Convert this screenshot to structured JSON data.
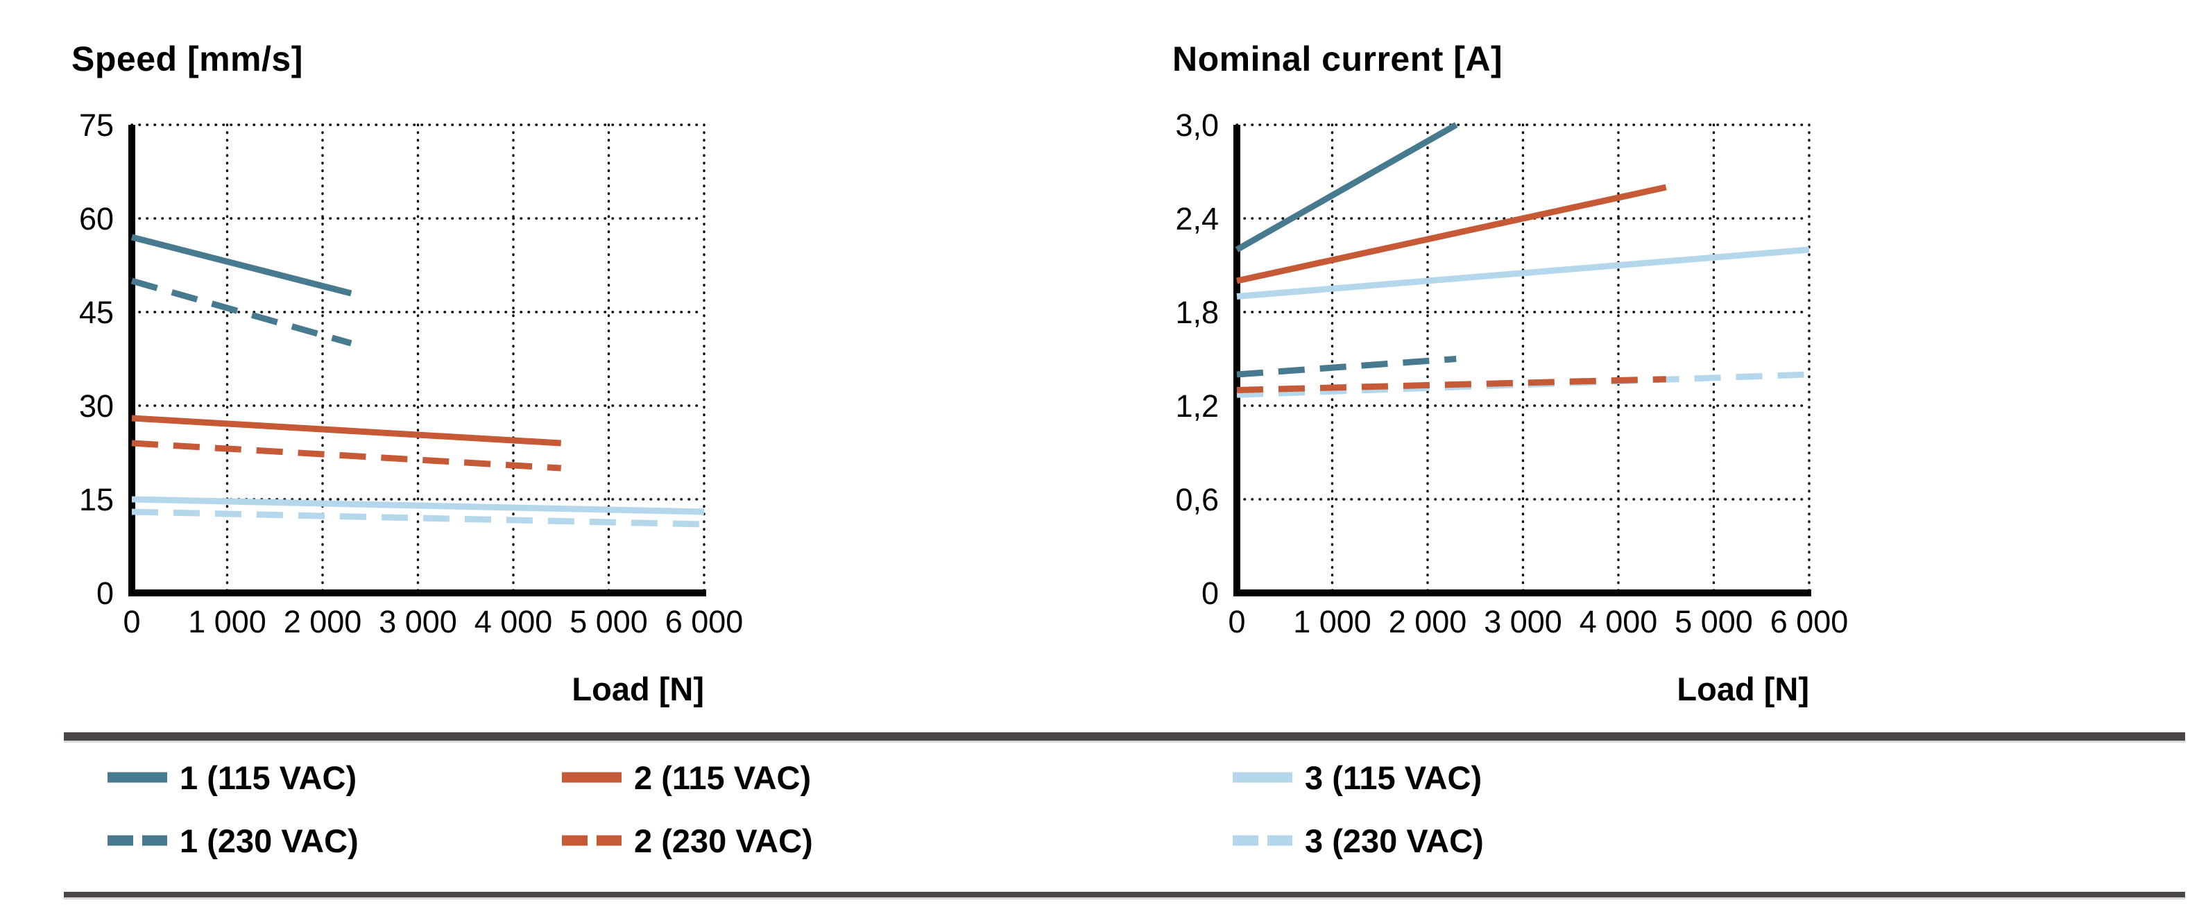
{
  "page": {
    "background": "#FFFFFF"
  },
  "colors": {
    "series1": "#47798F",
    "series2": "#C65A37",
    "series3": "#B5D7EC",
    "axis": "#000000",
    "grid": "#000000",
    "rule": "#494645"
  },
  "legend": {
    "items": [
      {
        "label": "1 (115 VAC)",
        "series": "series1",
        "style": "solid"
      },
      {
        "label": "1 (230 VAC)",
        "series": "series1",
        "style": "dashed"
      },
      {
        "label": "2 (115 VAC)",
        "series": "series2",
        "style": "solid"
      },
      {
        "label": "2 (230 VAC)",
        "series": "series2",
        "style": "dashed"
      },
      {
        "label": "3 (115 VAC)",
        "series": "series3",
        "style": "solid"
      },
      {
        "label": "3 (230 VAC)",
        "series": "series3",
        "style": "dashed"
      }
    ]
  },
  "chart_data": [
    {
      "type": "line",
      "title": "Speed [mm/s]",
      "xlabel": "Load [N]",
      "ylabel": "Speed [mm/s]",
      "xlim": [
        0,
        6000
      ],
      "ylim": [
        0,
        75
      ],
      "x_ticks": [
        0,
        1000,
        2000,
        3000,
        4000,
        5000,
        6000
      ],
      "x_tick_labels": [
        "0",
        "1 000",
        "2 000",
        "3 000",
        "4 000",
        "5 000",
        "6 000"
      ],
      "y_ticks": [
        0,
        15,
        30,
        45,
        60,
        75
      ],
      "y_tick_labels": [
        "0",
        "15",
        "30",
        "45",
        "60",
        "75"
      ],
      "grid": "dotted",
      "legend_position": "below-figure",
      "series": [
        {
          "name": "1 (115 VAC)",
          "color_key": "series1",
          "style": "solid",
          "x": [
            0,
            2300
          ],
          "y": [
            57,
            48
          ]
        },
        {
          "name": "1 (230 VAC)",
          "color_key": "series1",
          "style": "dashed",
          "x": [
            0,
            2300
          ],
          "y": [
            50,
            40
          ]
        },
        {
          "name": "2 (115 VAC)",
          "color_key": "series2",
          "style": "solid",
          "x": [
            0,
            4500
          ],
          "y": [
            28,
            24
          ]
        },
        {
          "name": "2 (230 VAC)",
          "color_key": "series2",
          "style": "dashed",
          "x": [
            0,
            4500
          ],
          "y": [
            24,
            20
          ]
        },
        {
          "name": "3 (230 VAC)",
          "color_key": "series3",
          "style": "dashed",
          "x": [
            0,
            6000
          ],
          "y": [
            13,
            11
          ]
        },
        {
          "name": "3 (115 VAC)",
          "color_key": "series3",
          "style": "solid",
          "x": [
            0,
            6000
          ],
          "y": [
            15,
            13
          ]
        }
      ]
    },
    {
      "type": "line",
      "title": "Nominal current [A]",
      "xlabel": "Load [N]",
      "ylabel": "Nominal current [A]",
      "xlim": [
        0,
        6000
      ],
      "ylim": [
        0,
        3.0
      ],
      "x_ticks": [
        0,
        1000,
        2000,
        3000,
        4000,
        5000,
        6000
      ],
      "x_tick_labels": [
        "0",
        "1 000",
        "2 000",
        "3 000",
        "4 000",
        "5 000",
        "6 000"
      ],
      "y_ticks": [
        0,
        0.6,
        1.2,
        1.8,
        2.4,
        3.0
      ],
      "y_tick_labels": [
        "0",
        "0,6",
        "1,2",
        "1,8",
        "2,4",
        "3,0"
      ],
      "grid": "dotted",
      "legend_position": "below-figure",
      "series": [
        {
          "name": "1 (115 VAC)",
          "color_key": "series1",
          "style": "solid",
          "x": [
            0,
            2300
          ],
          "y": [
            2.2,
            3.0
          ]
        },
        {
          "name": "2 (115 VAC)",
          "color_key": "series2",
          "style": "solid",
          "x": [
            0,
            4500
          ],
          "y": [
            2.0,
            2.6
          ]
        },
        {
          "name": "3 (115 VAC)",
          "color_key": "series3",
          "style": "solid",
          "x": [
            0,
            6000
          ],
          "y": [
            1.9,
            2.2
          ]
        },
        {
          "name": "3 (230 VAC)",
          "color_key": "series3",
          "style": "dashed",
          "x": [
            0,
            6000
          ],
          "y": [
            1.27,
            1.4
          ]
        },
        {
          "name": "1 (230 VAC)",
          "color_key": "series1",
          "style": "dashed",
          "x": [
            0,
            2300
          ],
          "y": [
            1.4,
            1.5
          ]
        },
        {
          "name": "2 (230 VAC)",
          "color_key": "series2",
          "style": "dashed",
          "x": [
            0,
            4500
          ],
          "y": [
            1.3,
            1.37
          ]
        }
      ]
    }
  ]
}
